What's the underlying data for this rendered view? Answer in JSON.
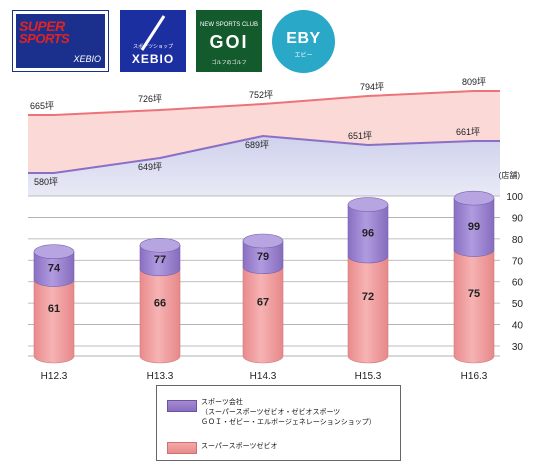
{
  "logos": {
    "super_sports": {
      "line1": "SUPER",
      "line2": "SPORTS",
      "line3": "XEBIO"
    },
    "xebio": {
      "sub": "スポーツショップ",
      "text": "XEBIO"
    },
    "goi": {
      "sub": "NEW SPORTS CLUB",
      "text": "GOI",
      "sub2": "ゴルフのゴルフ"
    },
    "eby": {
      "text": "EBY",
      "sub": "エビー"
    }
  },
  "chart_data": {
    "type": "bar",
    "categories": [
      "H12.3",
      "H13.3",
      "H14.3",
      "H15.3",
      "H16.3"
    ],
    "ylabel": "(店舗)",
    "yticks": [
      30,
      40,
      50,
      60,
      70,
      80,
      90,
      100
    ],
    "ylim": [
      24,
      100
    ],
    "series": [
      {
        "name": "スーパースポーツゼビオ",
        "values": [
          61,
          66,
          67,
          72,
          75
        ]
      },
      {
        "name": "スポーツ会社（スーパースポーツゼビオ・ゼビオスポーツ GOI・ゼビー・エルボージェネレーションショップ）",
        "values": [
          74,
          77,
          79,
          96,
          99
        ]
      }
    ],
    "area_upper": {
      "values": [
        665,
        726,
        752,
        794,
        809
      ],
      "labels": [
        "665坪",
        "726坪",
        "752坪",
        "794坪",
        "809坪"
      ]
    },
    "area_lower": {
      "values": [
        580,
        649,
        689,
        651,
        661
      ],
      "labels": [
        "580坪",
        "649坪",
        "689坪",
        "651坪",
        "661坪"
      ]
    },
    "colors": {
      "pink": "#f3a1a1",
      "purple": "#9e86cf",
      "upper_line": "#ec7479",
      "lower_line": "#8b6fc6"
    }
  },
  "legend": {
    "item1_line1": "スポーツ会社",
    "item1_line2": "（スーパースポーツゼビオ・ゼビオスポーツ",
    "item1_line3": "ＧＯＩ・ゼビー・エルボージェネレーションショップ）",
    "item2": "スーパースポーツゼビオ"
  }
}
